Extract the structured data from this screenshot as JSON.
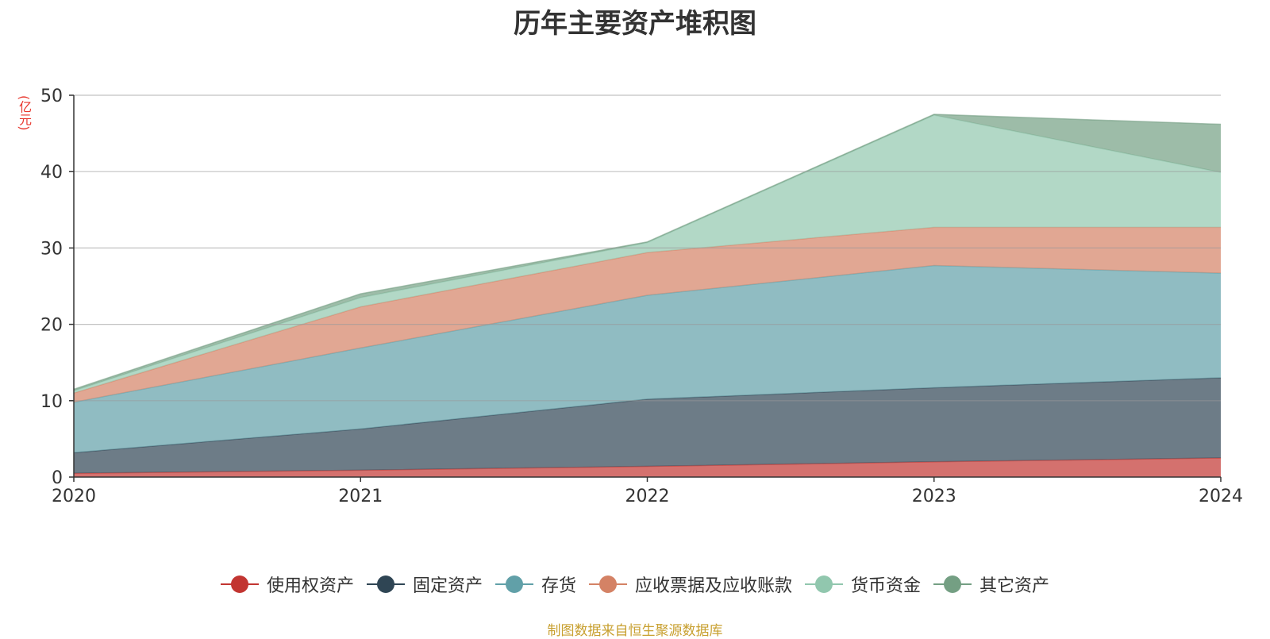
{
  "chart_data": {
    "type": "area",
    "stacked": true,
    "title": "历年主要资产堆积图",
    "unit_label": "(亿元)",
    "x": [
      "2020",
      "2021",
      "2022",
      "2023",
      "2024"
    ],
    "ylim": [
      0,
      50
    ],
    "yticks": [
      0,
      10,
      20,
      30,
      40,
      50
    ],
    "grid": true,
    "legend_position": "bottom",
    "series": [
      {
        "name": "使用权资产",
        "color": "#c23531",
        "values": [
          0.5,
          0.9,
          1.4,
          2.0,
          2.5
        ]
      },
      {
        "name": "固定资产",
        "color": "#2f4554",
        "values": [
          2.7,
          5.4,
          8.8,
          9.7,
          10.5
        ]
      },
      {
        "name": "存货",
        "color": "#61a0a8",
        "values": [
          6.6,
          10.6,
          13.6,
          16.0,
          13.7
        ]
      },
      {
        "name": "应收票据及应收账款",
        "color": "#d48265",
        "values": [
          1.2,
          5.4,
          5.6,
          5.0,
          6.0
        ]
      },
      {
        "name": "货币资金",
        "color": "#91c7ae",
        "values": [
          0.3,
          1.2,
          1.3,
          14.7,
          7.2
        ]
      },
      {
        "name": "其它资产",
        "color": "#749f83",
        "values": [
          0.2,
          0.5,
          0.1,
          0.1,
          6.3
        ]
      }
    ]
  },
  "source": "制图数据来自恒生聚源数据库"
}
